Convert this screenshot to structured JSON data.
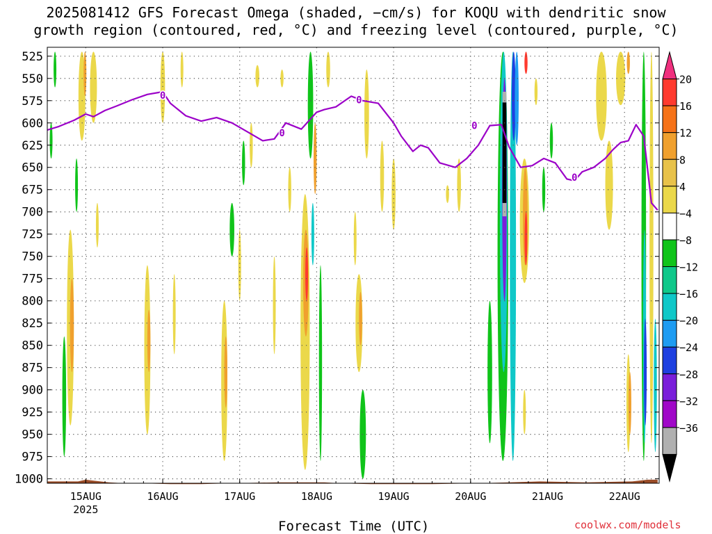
{
  "title_line1": "2025081412 GFS Forecast Omega (shaded, −cm/s) for KOQU with dendritic snow",
  "title_line2": "growth region (contoured, red, °C) and freezing level (contoured, purple, °C)",
  "xlabel": "Forecast Time (UTC)",
  "credit": "coolwx.com/models",
  "colors": {
    "grid": "#555555",
    "freezing_level": "#9b00c8",
    "ground": "#9a4d28",
    "credit": "#e0303a"
  },
  "chart_data": {
    "type": "heatmap",
    "y_scale": "pressure (hPa), inverted",
    "ylim": [
      1005,
      515
    ],
    "y_ticks": [
      525,
      550,
      575,
      600,
      625,
      650,
      675,
      700,
      725,
      750,
      775,
      800,
      825,
      850,
      875,
      900,
      925,
      950,
      975,
      1000
    ],
    "xlim": [
      0,
      7.95
    ],
    "x_ticks": [
      {
        "x": 0.5,
        "label": "15AUG",
        "sublabel": "2025"
      },
      {
        "x": 1.5,
        "label": "16AUG"
      },
      {
        "x": 2.5,
        "label": "17AUG"
      },
      {
        "x": 3.5,
        "label": "18AUG"
      },
      {
        "x": 4.5,
        "label": "19AUG"
      },
      {
        "x": 5.5,
        "label": "20AUG"
      },
      {
        "x": 6.5,
        "label": "21AUG"
      },
      {
        "x": 7.5,
        "label": "22AUG"
      }
    ],
    "x_units": "days after 2025-08-14 12 UTC",
    "grid": true,
    "colorbar": {
      "labels": [
        "20",
        "16",
        "12",
        "8",
        "4",
        "−4",
        "−8",
        "−12",
        "−16",
        "−20",
        "−24",
        "−28",
        "−32",
        "−36"
      ],
      "bounds": [
        20,
        16,
        12,
        8,
        4,
        -4,
        -8,
        -12,
        -16,
        -20,
        -24,
        -28,
        -32,
        -36
      ],
      "colors": [
        "#f0307e",
        "#ff3a2e",
        "#f57218",
        "#f0a02e",
        "#e8c24a",
        "#ebd84a",
        "#ffffff",
        "#10c41a",
        "#10c88a",
        "#10c8c8",
        "#1e9cf2",
        "#1e40e0",
        "#7a1eda",
        "#a008c8",
        "#b0b0b0",
        "#000000"
      ]
    },
    "freezing_level": {
      "name": "0",
      "x": [
        0,
        0.15,
        0.35,
        0.5,
        0.6,
        0.75,
        0.9,
        1.1,
        1.3,
        1.5,
        1.6,
        1.8,
        2.0,
        2.2,
        2.4,
        2.6,
        2.8,
        2.95,
        3.1,
        3.3,
        3.5,
        3.6,
        3.75,
        3.95,
        4.1,
        4.3,
        4.5,
        4.6,
        4.75,
        4.85,
        4.95,
        5.1,
        5.3,
        5.45,
        5.6,
        5.75,
        5.9,
        6.0,
        6.15,
        6.3,
        6.45,
        6.6,
        6.75,
        6.85,
        6.95,
        7.1,
        7.25,
        7.35,
        7.45,
        7.55,
        7.65,
        7.75,
        7.85,
        7.93
      ],
      "y": [
        608,
        604,
        597,
        590,
        593,
        586,
        581,
        574,
        568,
        565,
        578,
        592,
        598,
        594,
        600,
        610,
        620,
        618,
        600,
        607,
        588,
        585,
        582,
        570,
        575,
        578,
        600,
        615,
        632,
        625,
        628,
        645,
        650,
        640,
        625,
        603,
        602,
        627,
        650,
        648,
        640,
        645,
        663,
        665,
        655,
        650,
        640,
        630,
        622,
        620,
        602,
        615,
        690,
        698
      ]
    },
    "freezing_level_labels": [
      {
        "x": 1.5,
        "y": 569,
        "text": "0"
      },
      {
        "x": 3.05,
        "y": 611,
        "text": "0"
      },
      {
        "x": 4.05,
        "y": 574,
        "text": "0"
      },
      {
        "x": 5.55,
        "y": 603,
        "text": "0"
      },
      {
        "x": 6.85,
        "y": 661,
        "text": "0"
      }
    ],
    "omega_features": [
      {
        "x": 0.05,
        "y0": 600,
        "y1": 640,
        "w": 0.03,
        "color": "#10c41a"
      },
      {
        "x": 0.1,
        "y0": 520,
        "y1": 560,
        "w": 0.03,
        "color": "#10c41a"
      },
      {
        "x": 0.22,
        "y0": 840,
        "y1": 975,
        "w": 0.05,
        "color": "#10c41a"
      },
      {
        "x": 0.3,
        "y0": 720,
        "y1": 940,
        "w": 0.09,
        "color": "#ebd84a"
      },
      {
        "x": 0.32,
        "y0": 775,
        "y1": 880,
        "w": 0.05,
        "color": "#f0a02e"
      },
      {
        "x": 0.38,
        "y0": 640,
        "y1": 700,
        "w": 0.03,
        "color": "#10c41a"
      },
      {
        "x": 0.45,
        "y0": 520,
        "y1": 620,
        "w": 0.09,
        "color": "#ebd84a"
      },
      {
        "x": 0.49,
        "y0": 520,
        "y1": 570,
        "w": 0.03,
        "color": "#f0a02e"
      },
      {
        "x": 0.6,
        "y0": 520,
        "y1": 600,
        "w": 0.09,
        "color": "#ebd84a"
      },
      {
        "x": 0.65,
        "y0": 690,
        "y1": 740,
        "w": 0.03,
        "color": "#ebd84a"
      },
      {
        "x": 1.3,
        "y0": 760,
        "y1": 950,
        "w": 0.08,
        "color": "#ebd84a"
      },
      {
        "x": 1.32,
        "y0": 810,
        "y1": 880,
        "w": 0.04,
        "color": "#f0a02e"
      },
      {
        "x": 1.5,
        "y0": 520,
        "y1": 600,
        "w": 0.06,
        "color": "#ebd84a"
      },
      {
        "x": 1.65,
        "y0": 770,
        "y1": 860,
        "w": 0.03,
        "color": "#ebd84a"
      },
      {
        "x": 1.75,
        "y0": 520,
        "y1": 560,
        "w": 0.03,
        "color": "#ebd84a"
      },
      {
        "x": 2.3,
        "y0": 800,
        "y1": 980,
        "w": 0.08,
        "color": "#ebd84a"
      },
      {
        "x": 2.32,
        "y0": 840,
        "y1": 920,
        "w": 0.04,
        "color": "#f0a02e"
      },
      {
        "x": 2.4,
        "y0": 690,
        "y1": 750,
        "w": 0.06,
        "color": "#10c41a"
      },
      {
        "x": 2.5,
        "y0": 720,
        "y1": 800,
        "w": 0.03,
        "color": "#ebd84a"
      },
      {
        "x": 2.55,
        "y0": 620,
        "y1": 670,
        "w": 0.04,
        "color": "#10c41a"
      },
      {
        "x": 2.65,
        "y0": 600,
        "y1": 650,
        "w": 0.04,
        "color": "#ebd84a"
      },
      {
        "x": 2.73,
        "y0": 535,
        "y1": 560,
        "w": 0.05,
        "color": "#ebd84a"
      },
      {
        "x": 2.95,
        "y0": 750,
        "y1": 860,
        "w": 0.03,
        "color": "#ebd84a"
      },
      {
        "x": 3.05,
        "y0": 540,
        "y1": 560,
        "w": 0.04,
        "color": "#ebd84a"
      },
      {
        "x": 3.15,
        "y0": 650,
        "y1": 700,
        "w": 0.04,
        "color": "#ebd84a"
      },
      {
        "x": 3.35,
        "y0": 680,
        "y1": 990,
        "w": 0.12,
        "color": "#ebd84a"
      },
      {
        "x": 3.36,
        "y0": 720,
        "y1": 840,
        "w": 0.07,
        "color": "#f0a02e"
      },
      {
        "x": 3.37,
        "y0": 740,
        "y1": 800,
        "w": 0.03,
        "color": "#ff3a2e"
      },
      {
        "x": 3.42,
        "y0": 520,
        "y1": 640,
        "w": 0.07,
        "color": "#10c41a"
      },
      {
        "x": 3.48,
        "y0": 600,
        "y1": 680,
        "w": 0.04,
        "color": "#f0a02e"
      },
      {
        "x": 3.45,
        "y0": 690,
        "y1": 760,
        "w": 0.03,
        "color": "#10c8c8"
      },
      {
        "x": 3.55,
        "y0": 760,
        "y1": 980,
        "w": 0.04,
        "color": "#10c41a"
      },
      {
        "x": 3.65,
        "y0": 520,
        "y1": 560,
        "w": 0.05,
        "color": "#ebd84a"
      },
      {
        "x": 4.05,
        "y0": 770,
        "y1": 880,
        "w": 0.09,
        "color": "#ebd84a"
      },
      {
        "x": 4.07,
        "y0": 790,
        "y1": 850,
        "w": 0.04,
        "color": "#f0a02e"
      },
      {
        "x": 4.1,
        "y0": 900,
        "y1": 1000,
        "w": 0.08,
        "color": "#10c41a"
      },
      {
        "x": 4.0,
        "y0": 700,
        "y1": 760,
        "w": 0.03,
        "color": "#ebd84a"
      },
      {
        "x": 4.15,
        "y0": 540,
        "y1": 640,
        "w": 0.06,
        "color": "#ebd84a"
      },
      {
        "x": 4.35,
        "y0": 620,
        "y1": 700,
        "w": 0.05,
        "color": "#ebd84a"
      },
      {
        "x": 4.5,
        "y0": 640,
        "y1": 720,
        "w": 0.05,
        "color": "#ebd84a"
      },
      {
        "x": 5.2,
        "y0": 670,
        "y1": 690,
        "w": 0.04,
        "color": "#ebd84a"
      },
      {
        "x": 5.35,
        "y0": 640,
        "y1": 700,
        "w": 0.05,
        "color": "#ebd84a"
      },
      {
        "x": 5.75,
        "y0": 800,
        "y1": 960,
        "w": 0.06,
        "color": "#10c41a"
      },
      {
        "x": 5.92,
        "y0": 520,
        "y1": 980,
        "w": 0.14,
        "color": "#10c41a"
      },
      {
        "x": 5.93,
        "y0": 520,
        "y1": 880,
        "w": 0.1,
        "color": "#10c8c8"
      },
      {
        "x": 5.94,
        "y0": 550,
        "y1": 800,
        "w": 0.06,
        "color": "#7a1eda"
      },
      {
        "x": 6.05,
        "y0": 520,
        "y1": 980,
        "w": 0.08,
        "color": "#10c8c8"
      },
      {
        "x": 6.06,
        "y0": 520,
        "y1": 620,
        "w": 0.05,
        "color": "#1e40e0"
      },
      {
        "x": 6.1,
        "y0": 520,
        "y1": 625,
        "w": 0.05,
        "color": "#1e9cf2"
      },
      {
        "x": 6.2,
        "y0": 640,
        "y1": 780,
        "w": 0.12,
        "color": "#ebd84a"
      },
      {
        "x": 6.21,
        "y0": 650,
        "y1": 760,
        "w": 0.06,
        "color": "#f0a02e"
      },
      {
        "x": 6.22,
        "y0": 700,
        "y1": 760,
        "w": 0.03,
        "color": "#ff3a2e"
      },
      {
        "x": 6.22,
        "y0": 520,
        "y1": 545,
        "w": 0.04,
        "color": "#ff3a2e"
      },
      {
        "x": 6.2,
        "y0": 900,
        "y1": 950,
        "w": 0.03,
        "color": "#ebd84a"
      },
      {
        "x": 6.35,
        "y0": 550,
        "y1": 580,
        "w": 0.04,
        "color": "#ebd84a"
      },
      {
        "x": 6.45,
        "y0": 650,
        "y1": 700,
        "w": 0.04,
        "color": "#10c41a"
      },
      {
        "x": 6.55,
        "y0": 600,
        "y1": 640,
        "w": 0.04,
        "color": "#10c41a"
      },
      {
        "x": 7.2,
        "y0": 520,
        "y1": 620,
        "w": 0.14,
        "color": "#ebd84a"
      },
      {
        "x": 7.45,
        "y0": 520,
        "y1": 580,
        "w": 0.12,
        "color": "#ebd84a"
      },
      {
        "x": 7.55,
        "y0": 520,
        "y1": 545,
        "w": 0.04,
        "color": "#f0a02e"
      },
      {
        "x": 7.3,
        "y0": 620,
        "y1": 720,
        "w": 0.1,
        "color": "#ebd84a"
      },
      {
        "x": 7.55,
        "y0": 860,
        "y1": 970,
        "w": 0.05,
        "color": "#ebd84a"
      },
      {
        "x": 7.57,
        "y0": 880,
        "y1": 950,
        "w": 0.02,
        "color": "#f0a02e"
      },
      {
        "x": 7.75,
        "y0": 520,
        "y1": 980,
        "w": 0.06,
        "color": "#10c41a"
      },
      {
        "x": 7.76,
        "y0": 720,
        "y1": 960,
        "w": 0.04,
        "color": "#10c8c8"
      },
      {
        "x": 7.77,
        "y0": 820,
        "y1": 940,
        "w": 0.03,
        "color": "#1e40e0"
      },
      {
        "x": 7.85,
        "y0": 520,
        "y1": 960,
        "w": 0.05,
        "color": "#ebd84a"
      },
      {
        "x": 7.9,
        "y0": 820,
        "y1": 970,
        "w": 0.04,
        "color": "#10c8c8"
      }
    ],
    "dgz_features": [
      {
        "x": 5.94,
        "y0": 577,
        "y1": 690,
        "w": 0.05,
        "color": "#000000"
      },
      {
        "x": 5.94,
        "y0": 565,
        "y1": 577,
        "w": 0.05,
        "color": "#b0b0b0"
      },
      {
        "x": 5.94,
        "y0": 690,
        "y1": 705,
        "w": 0.05,
        "color": "#b0b0b0"
      }
    ],
    "ground_level": {
      "x": [
        0,
        0.4,
        0.5,
        0.6,
        0.8,
        1.0,
        1.2,
        1.6,
        2.0,
        2.4,
        3.0,
        3.6,
        3.8,
        4.2,
        4.6,
        5.0,
        5.6,
        6.0,
        6.4,
        7.0,
        7.6,
        7.8,
        7.93
      ],
      "y": [
        1003,
        1003,
        1001,
        1002,
        1004,
        1005,
        1005,
        1006,
        1006,
        1005,
        1004,
        1004,
        1005,
        1006,
        1006,
        1006,
        1005,
        1004,
        1003,
        1004,
        1003,
        1001,
        1001
      ]
    }
  }
}
